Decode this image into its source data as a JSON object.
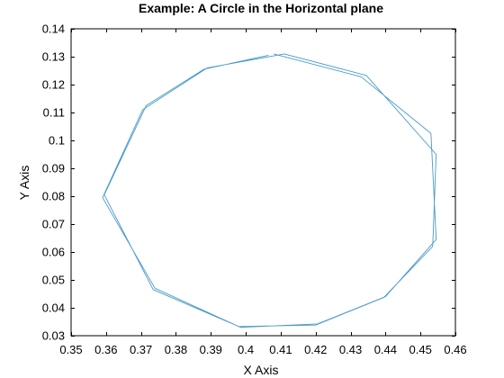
{
  "chart_data": {
    "type": "line",
    "title": "Example: A Circle in the Horizontal plane",
    "xlabel": "X Axis",
    "ylabel": "Y Axis",
    "xlim": [
      0.35,
      0.46
    ],
    "ylim": [
      0.03,
      0.14
    ],
    "grid": false,
    "x_ticks": [
      "0.35",
      "0.36",
      "0.37",
      "0.38",
      "0.39",
      "0.4",
      "0.41",
      "0.42",
      "0.43",
      "0.44",
      "0.45",
      "0.46"
    ],
    "y_ticks": [
      "0.03",
      "0.04",
      "0.05",
      "0.06",
      "0.07",
      "0.08",
      "0.09",
      "0.1",
      "0.11",
      "0.12",
      "0.13",
      "0.14"
    ],
    "series": [
      {
        "color": "#4a9bc9",
        "points": [
          [
            0.4065,
            0.1305
          ],
          [
            0.388,
            0.1255
          ],
          [
            0.3715,
            0.1125
          ],
          [
            0.3595,
            0.0805
          ],
          [
            0.3735,
            0.0465
          ],
          [
            0.398,
            0.0333
          ],
          [
            0.42,
            0.0338
          ],
          [
            0.4395,
            0.0437
          ],
          [
            0.4535,
            0.062
          ],
          [
            0.4545,
            0.095
          ],
          [
            0.4345,
            0.1233
          ],
          [
            0.411,
            0.131
          ],
          [
            0.389,
            0.126
          ],
          [
            0.3705,
            0.111
          ],
          [
            0.359,
            0.0795
          ],
          [
            0.374,
            0.047
          ],
          [
            0.3985,
            0.033
          ],
          [
            0.4205,
            0.0342
          ],
          [
            0.44,
            0.044
          ],
          [
            0.4545,
            0.0645
          ],
          [
            0.453,
            0.1025
          ],
          [
            0.433,
            0.1228
          ],
          [
            0.408,
            0.131
          ]
        ]
      }
    ]
  }
}
